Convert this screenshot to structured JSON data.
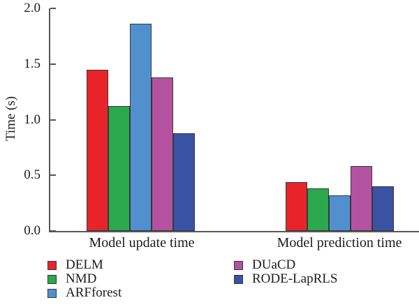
{
  "figure_title": "",
  "chart_data": {
    "type": "bar",
    "title": "",
    "xlabel": "",
    "ylabel": "Time (s)",
    "categories": [
      "Model update time",
      "Model prediction time"
    ],
    "series": [
      {
        "name": "DELM",
        "color": "#e8232a",
        "values": [
          1.45,
          0.44
        ]
      },
      {
        "name": "NMD",
        "color": "#2aa84c",
        "values": [
          1.12,
          0.38
        ]
      },
      {
        "name": "ARFforest",
        "color": "#5190ce",
        "values": [
          1.86,
          0.32
        ]
      },
      {
        "name": "DUaCD",
        "color": "#b4529f",
        "values": [
          1.38,
          0.58
        ]
      },
      {
        "name": "RODE-LapRLS",
        "color": "#3a52a4",
        "values": [
          0.88,
          0.4
        ]
      }
    ],
    "ylim": [
      0,
      2.0
    ],
    "yticks": [
      "0.0",
      "0.5",
      "1.0",
      "1.5",
      "2.0"
    ],
    "grid": false,
    "legend_position": "bottom",
    "legend": {
      "columns": [
        [
          0,
          1,
          2
        ],
        [
          3,
          4
        ]
      ]
    },
    "axis_color": "#565656",
    "bar_edge_color": "#383838",
    "text_color": "#1c1c1c"
  }
}
